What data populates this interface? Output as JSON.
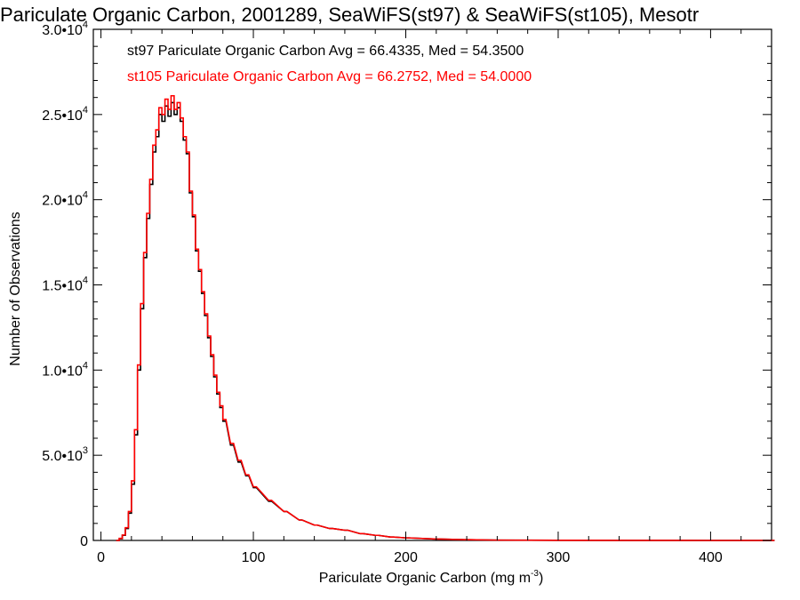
{
  "chart_data": {
    "type": "histogram",
    "title": "Pariculate Organic Carbon, 2001289, SeaWiFS(st97) & SeaWiFS(st105), Mesotr",
    "xlabel": "Pariculate Organic Carbon (mg m",
    "xlabel_sup": "-3",
    "xlabel_close": ")",
    "ylabel": "Number of Observations",
    "xlim": [
      -5,
      440
    ],
    "ylim": [
      0,
      30000
    ],
    "grid": false,
    "x_ticks": [
      0,
      100,
      200,
      300,
      400
    ],
    "x_tick_labels": [
      "0",
      "100",
      "200",
      "300",
      "400"
    ],
    "y_ticks": [
      0,
      5000,
      10000,
      15000,
      20000,
      25000,
      30000
    ],
    "y_tick_labels": [
      {
        "mant": "0",
        "exp": ""
      },
      {
        "mant": "5.0•10",
        "exp": "3"
      },
      {
        "mant": "1.0•10",
        "exp": "4"
      },
      {
        "mant": "1.5•10",
        "exp": "4"
      },
      {
        "mant": "2.0•10",
        "exp": "4"
      },
      {
        "mant": "2.5•10",
        "exp": "4"
      },
      {
        "mant": "3.0•10",
        "exp": "4"
      }
    ],
    "bin_width": 2,
    "x": [
      10,
      12,
      14,
      16,
      18,
      20,
      22,
      24,
      26,
      28,
      30,
      32,
      34,
      36,
      38,
      40,
      42,
      44,
      46,
      48,
      50,
      52,
      54,
      56,
      58,
      60,
      62,
      64,
      66,
      68,
      70,
      72,
      74,
      76,
      78,
      80,
      85,
      90,
      95,
      100,
      110,
      120,
      130,
      140,
      150,
      160,
      170,
      180,
      190,
      200,
      220,
      240,
      260,
      300,
      350,
      400,
      440
    ],
    "series": [
      {
        "name": "st97",
        "color": "#000000",
        "label": "st97 Pariculate Organic Carbon Avg = 66.4335, Med = 54.3500",
        "values": [
          0,
          100,
          300,
          700,
          1600,
          3300,
          6200,
          10000,
          13600,
          16600,
          18900,
          20900,
          22800,
          23700,
          25000,
          24600,
          25500,
          24900,
          25700,
          25000,
          25400,
          24600,
          23500,
          22700,
          20400,
          19000,
          17000,
          15800,
          14500,
          13200,
          11900,
          10800,
          9600,
          8600,
          7800,
          7000,
          5600,
          4600,
          3800,
          3100,
          2300,
          1700,
          1200,
          900,
          700,
          600,
          400,
          300,
          200,
          150,
          80,
          40,
          20,
          10,
          5,
          0,
          0
        ]
      },
      {
        "name": "st105",
        "color": "#ff0000",
        "label": "st105 Pariculate Organic Carbon Avg = 66.2752, Med = 54.0000",
        "values": [
          0,
          120,
          320,
          750,
          1700,
          3500,
          6500,
          10300,
          13900,
          16900,
          19200,
          21200,
          23200,
          24100,
          25400,
          25000,
          25900,
          25300,
          26100,
          25300,
          25700,
          24800,
          23700,
          22800,
          20500,
          19100,
          17100,
          15900,
          14600,
          13300,
          12000,
          10900,
          9700,
          8700,
          7900,
          7100,
          5700,
          4700,
          3850,
          3150,
          2350,
          1700,
          1200,
          900,
          700,
          600,
          400,
          300,
          200,
          150,
          80,
          40,
          20,
          10,
          5,
          0,
          0
        ]
      }
    ]
  }
}
